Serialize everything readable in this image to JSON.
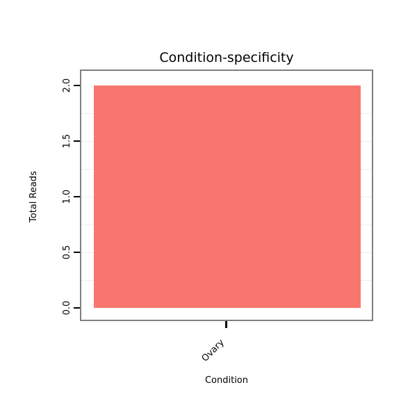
{
  "chart_data": {
    "type": "bar",
    "title": "Condition-specificity",
    "xlabel": "Condition",
    "ylabel": "Total Reads",
    "categories": [
      "Ovary"
    ],
    "values": [
      2.0
    ],
    "ylim": [
      0,
      2
    ],
    "yticks": [
      0.0,
      0.5,
      1.0,
      1.5,
      2.0
    ],
    "ytick_labels": [
      "0.0",
      "0.5",
      "1.0",
      "1.5",
      "2.0"
    ],
    "x_tick_label_rotation_deg": 45,
    "bar_color": "#F8766D",
    "panel_border_color": "#7F7F7F",
    "tick_color": "#000000",
    "grid": "faint horizontal lines every 0.25 units",
    "legend_position": "none"
  }
}
